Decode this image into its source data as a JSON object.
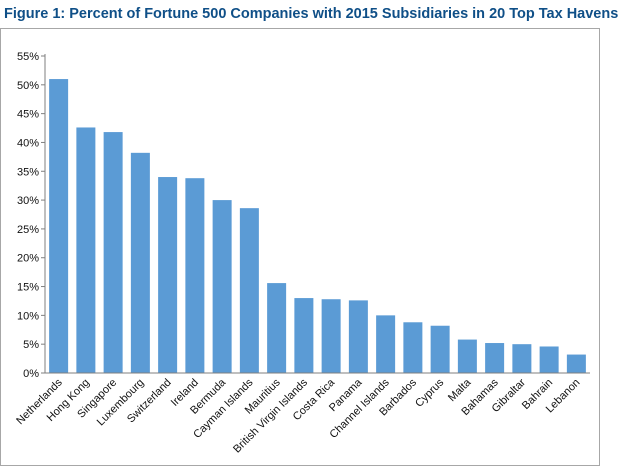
{
  "title": "Figure 1: Percent of Fortune 500 Companies with 2015 Subsidiaries in 20 Top Tax Havens",
  "colors": {
    "bar": "#5b9bd5",
    "title": "#0f4f87",
    "axis": "#7f7f7f"
  },
  "chart_data": {
    "type": "bar",
    "title": "Figure 1: Percent of Fortune 500 Companies with 2015 Subsidiaries in 20 Top Tax Havens",
    "xlabel": "",
    "ylabel": "",
    "ylim": [
      0,
      55
    ],
    "ytick_labels": [
      "0%",
      "5%",
      "10%",
      "15%",
      "20%",
      "25%",
      "30%",
      "35%",
      "40%",
      "45%",
      "50%",
      "55%"
    ],
    "grid": false,
    "categories": [
      "Netherlands",
      "Hong Kong",
      "Singapore",
      "Luxembourg",
      "Switzerland",
      "Ireland",
      "Bermuda",
      "Cayman Islands",
      "Mauritius",
      "British Virgin Islands",
      "Costa Rica",
      "Panama",
      "Channel Islands",
      "Barbados",
      "Cyprus",
      "Malta",
      "Bahamas",
      "Gibraltar",
      "Bahrain",
      "Lebanon"
    ],
    "values": [
      51.0,
      42.6,
      41.8,
      38.2,
      34.0,
      33.8,
      30.0,
      28.6,
      15.6,
      13.0,
      12.8,
      12.6,
      10.0,
      8.8,
      8.2,
      5.8,
      5.2,
      5.0,
      4.6,
      3.2
    ]
  }
}
